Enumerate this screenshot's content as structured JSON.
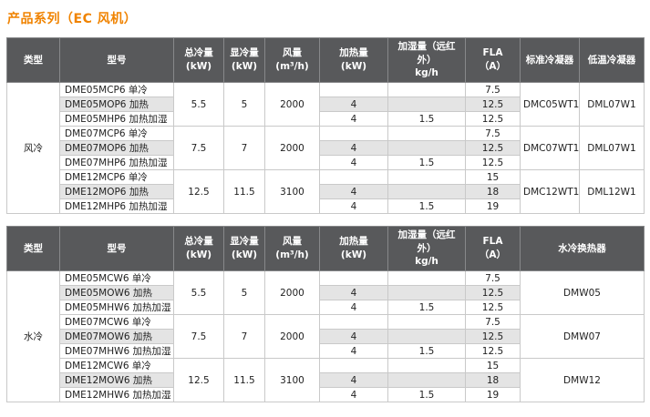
{
  "page_title": "产品系列（EC 风机）",
  "colors": {
    "accent_orange": "#f08300",
    "header_bg": "#58595b",
    "alt_row_bg": "#e4e4e4"
  },
  "tables": [
    {
      "id": "air-cooled",
      "type_label": "风冷",
      "headers": [
        {
          "label": "类型"
        },
        {
          "label": "型号"
        },
        {
          "label": "总冷量\n(kW)"
        },
        {
          "label": "显冷量\n(kW)"
        },
        {
          "label": "风量\n(m³/h)"
        },
        {
          "label": "加热量\n(kW)"
        },
        {
          "label": "加湿量（远红外）\nkg/h"
        },
        {
          "label": "FLA\n（A）"
        },
        {
          "label": "标准冷凝器"
        },
        {
          "label": "低温冷凝器"
        }
      ],
      "groups": [
        {
          "total_cooling": "5.5",
          "sensible_cooling": "5",
          "airflow": "2000",
          "trailing": [
            "DMC05WT1",
            "DML07W1"
          ],
          "rows": [
            {
              "model": "DME05MCP6 单冷",
              "heating": "",
              "humidify": "",
              "fla": "7.5"
            },
            {
              "model": "DME05MOP6 加热",
              "heating": "4",
              "humidify": "",
              "fla": "12.5"
            },
            {
              "model": "DME05MHP6 加热加湿",
              "heating": "4",
              "humidify": "1.5",
              "fla": "12.5"
            }
          ]
        },
        {
          "total_cooling": "7.5",
          "sensible_cooling": "7",
          "airflow": "2000",
          "trailing": [
            "DMC07WT1",
            "DML07W1"
          ],
          "rows": [
            {
              "model": "DME07MCP6 单冷",
              "heating": "",
              "humidify": "",
              "fla": "7.5"
            },
            {
              "model": "DME07MOP6 加热",
              "heating": "4",
              "humidify": "",
              "fla": "12.5"
            },
            {
              "model": "DME07MHP6 加热加湿",
              "heating": "4",
              "humidify": "1.5",
              "fla": "12.5"
            }
          ]
        },
        {
          "total_cooling": "12.5",
          "sensible_cooling": "11.5",
          "airflow": "3100",
          "trailing": [
            "DMC12WT1",
            "DML12W1"
          ],
          "rows": [
            {
              "model": "DME12MCP6 单冷",
              "heating": "",
              "humidify": "",
              "fla": "15"
            },
            {
              "model": "DME12MOP6 加热",
              "heating": "4",
              "humidify": "",
              "fla": "18"
            },
            {
              "model": "DME12MHP6 加热加湿",
              "heating": "4",
              "humidify": "1.5",
              "fla": "19"
            }
          ]
        }
      ]
    },
    {
      "id": "water-cooled",
      "type_label": "水冷",
      "headers": [
        {
          "label": "类型"
        },
        {
          "label": "型号"
        },
        {
          "label": "总冷量\n(kW)"
        },
        {
          "label": "显冷量\n(kW)"
        },
        {
          "label": "风量\n(m³/h)"
        },
        {
          "label": "加热量\n(kW)"
        },
        {
          "label": "加湿量（远红外）\nkg/h"
        },
        {
          "label": "FLA\n（A）"
        },
        {
          "label": "水冷换热器"
        }
      ],
      "groups": [
        {
          "total_cooling": "5.5",
          "sensible_cooling": "5",
          "airflow": "2000",
          "trailing": [
            "DMW05"
          ],
          "rows": [
            {
              "model": "DME05MCW6 单冷",
              "heating": "",
              "humidify": "",
              "fla": "7.5"
            },
            {
              "model": "DME05MOW6 加热",
              "heating": "4",
              "humidify": "",
              "fla": "12.5"
            },
            {
              "model": "DME05MHW6 加热加湿",
              "heating": "4",
              "humidify": "1.5",
              "fla": "12.5"
            }
          ]
        },
        {
          "total_cooling": "7.5",
          "sensible_cooling": "7",
          "airflow": "2000",
          "trailing": [
            "DMW07"
          ],
          "rows": [
            {
              "model": "DME07MCW6 单冷",
              "heating": "",
              "humidify": "",
              "fla": "7.5"
            },
            {
              "model": "DME07MOW6 加热",
              "heating": "4",
              "humidify": "",
              "fla": "12.5"
            },
            {
              "model": "DME07MHW6 加热加湿",
              "heating": "4",
              "humidify": "1.5",
              "fla": "12.5"
            }
          ]
        },
        {
          "total_cooling": "12.5",
          "sensible_cooling": "11.5",
          "airflow": "3100",
          "trailing": [
            "DMW12"
          ],
          "rows": [
            {
              "model": "DME12MCW6 单冷",
              "heating": "",
              "humidify": "",
              "fla": "15"
            },
            {
              "model": "DME12MOW6 加热",
              "heating": "4",
              "humidify": "",
              "fla": "18"
            },
            {
              "model": "DME12MHW6 加热加湿",
              "heating": "4",
              "humidify": "1.5",
              "fla": "19"
            }
          ]
        }
      ]
    }
  ]
}
